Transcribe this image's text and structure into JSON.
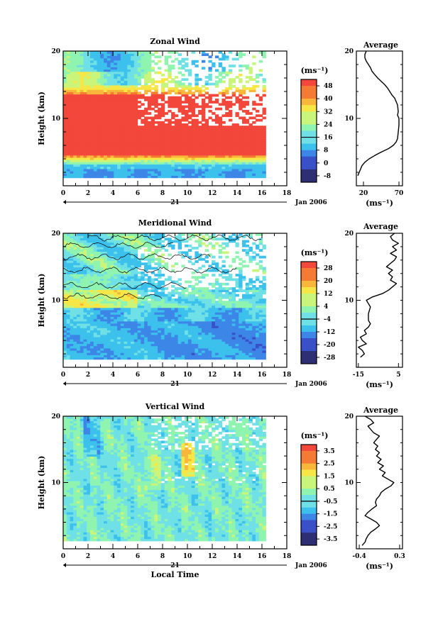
{
  "figure": {
    "shared": {
      "ylabel": "Height (km)",
      "yticks": [
        10,
        20
      ],
      "xticks": [
        0,
        2,
        4,
        6,
        8,
        10,
        12,
        14,
        16,
        18
      ],
      "date_day": "21",
      "date_suffix": "Jan 2006",
      "xlabel": "Local Time",
      "unit_label": "(ms⁻¹)",
      "profile_title": "Average"
    },
    "colors": {
      "palette": [
        "#2c2f73",
        "#3a50c9",
        "#3d86e8",
        "#3cc0ec",
        "#6fe0e6",
        "#8ef4b0",
        "#c9f57a",
        "#f7e746",
        "#f8b73a",
        "#f57a33",
        "#f2473a"
      ],
      "white": "#ffffff"
    }
  },
  "chart_data": [
    {
      "type": "heatmap",
      "title": "Zonal Wind",
      "xlabel": "",
      "ylabel": "Height (km)",
      "x_range": [
        0,
        18
      ],
      "y_range": [
        0,
        20
      ],
      "data_extent_x": [
        0,
        16.3
      ],
      "colorbar": {
        "unit": "(ms⁻¹)",
        "levels": [
          -8,
          0,
          8,
          16,
          24,
          32,
          40,
          48
        ],
        "tick_labels": [
          "48",
          "40",
          "32",
          "24",
          "16",
          "8",
          "0",
          "-8"
        ]
      },
      "profile": {
        "title": "Average",
        "xlabel": "(ms⁻¹)",
        "xlim": [
          10,
          75
        ],
        "xtick_labels": [
          "20",
          "70"
        ],
        "xtick_values": [
          20,
          70
        ],
        "points": [
          [
            12,
            1.5
          ],
          [
            14,
            2
          ],
          [
            16,
            2.5
          ],
          [
            18,
            3
          ],
          [
            22,
            3.5
          ],
          [
            28,
            4
          ],
          [
            36,
            4.5
          ],
          [
            45,
            5
          ],
          [
            55,
            5.5
          ],
          [
            62,
            6
          ],
          [
            66,
            6.5
          ],
          [
            68,
            7
          ],
          [
            69,
            8
          ],
          [
            70,
            9
          ],
          [
            70,
            10
          ],
          [
            68,
            10.5
          ],
          [
            69,
            11
          ],
          [
            68,
            12
          ],
          [
            66,
            12.5
          ],
          [
            64,
            13
          ],
          [
            60,
            13.5
          ],
          [
            57,
            14
          ],
          [
            54,
            14.5
          ],
          [
            50,
            15
          ],
          [
            45,
            15.5
          ],
          [
            40,
            16
          ],
          [
            36,
            16.5
          ],
          [
            32,
            17
          ],
          [
            30,
            17.5
          ],
          [
            27,
            18
          ],
          [
            24,
            18.5
          ],
          [
            22,
            19
          ],
          [
            22,
            19.5
          ],
          [
            24,
            20
          ]
        ]
      }
    },
    {
      "type": "heatmap",
      "title": "Meridional Wind",
      "xlabel": "",
      "ylabel": "Height (km)",
      "x_range": [
        0,
        18
      ],
      "y_range": [
        0,
        20
      ],
      "data_extent_x": [
        0,
        16.3
      ],
      "colorbar": {
        "unit": "(ms⁻¹)",
        "levels": [
          -28,
          -20,
          -12,
          -4,
          4,
          12,
          20,
          28
        ],
        "tick_labels": [
          "28",
          "20",
          "12",
          "4",
          "-4",
          "-12",
          "-20",
          "-28"
        ]
      },
      "profile": {
        "title": "Average",
        "xlabel": "(ms⁻¹)",
        "xlim": [
          -16,
          7
        ],
        "xtick_labels": [
          "-15",
          "5"
        ],
        "xtick_values": [
          -15,
          5
        ],
        "points": [
          [
            -14,
            1.5
          ],
          [
            -12,
            2
          ],
          [
            -13,
            2.5
          ],
          [
            -15,
            3
          ],
          [
            -11,
            3.5
          ],
          [
            -13,
            4
          ],
          [
            -14,
            4.5
          ],
          [
            -11,
            5
          ],
          [
            -12,
            5.5
          ],
          [
            -10,
            6
          ],
          [
            -9,
            6.5
          ],
          [
            -10,
            7
          ],
          [
            -10,
            8
          ],
          [
            -9,
            9
          ],
          [
            -10,
            9.5
          ],
          [
            -11,
            10
          ],
          [
            -8,
            10.5
          ],
          [
            -3,
            11
          ],
          [
            0,
            11.5
          ],
          [
            2,
            12
          ],
          [
            4,
            12.5
          ],
          [
            1,
            13
          ],
          [
            2,
            13.5
          ],
          [
            0,
            14
          ],
          [
            2,
            14.5
          ],
          [
            -1,
            15
          ],
          [
            1,
            15.5
          ],
          [
            3,
            16
          ],
          [
            4,
            16.5
          ],
          [
            1,
            17
          ],
          [
            4,
            17.5
          ],
          [
            2,
            18
          ],
          [
            5,
            18.5
          ],
          [
            2,
            19
          ],
          [
            1,
            19.5
          ],
          [
            3,
            20
          ]
        ]
      }
    },
    {
      "type": "heatmap",
      "title": "Vertical Wind",
      "xlabel": "Local Time",
      "ylabel": "Height (km)",
      "x_range": [
        0,
        18
      ],
      "y_range": [
        0,
        20
      ],
      "data_extent_x": [
        0,
        16.3
      ],
      "colorbar": {
        "unit": "(ms⁻¹)",
        "levels": [
          -3.5,
          -2.5,
          -1.5,
          -0.5,
          0.5,
          1.5,
          2.5,
          3.5
        ],
        "tick_labels": [
          "3.5",
          "2.5",
          "1.5",
          "0.5",
          "-0.5",
          "-1.5",
          "-2.5",
          "-3.5"
        ]
      },
      "profile": {
        "title": "Average",
        "xlabel": "(ms⁻¹)",
        "xlim": [
          -0.45,
          0.35
        ],
        "xtick_labels": [
          "-0.4",
          "0.3"
        ],
        "xtick_values": [
          -0.4,
          0.3
        ],
        "points": [
          [
            -0.35,
            0.5
          ],
          [
            -0.3,
            1
          ],
          [
            -0.28,
            1.5
          ],
          [
            -0.25,
            2
          ],
          [
            -0.2,
            2.5
          ],
          [
            -0.12,
            3
          ],
          [
            -0.05,
            3.5
          ],
          [
            -0.1,
            4
          ],
          [
            -0.2,
            4.5
          ],
          [
            -0.3,
            5
          ],
          [
            -0.25,
            5.5
          ],
          [
            -0.18,
            6
          ],
          [
            -0.1,
            6.5
          ],
          [
            -0.12,
            7
          ],
          [
            -0.1,
            7.5
          ],
          [
            -0.05,
            8
          ],
          [
            -0.02,
            8.5
          ],
          [
            0.05,
            9
          ],
          [
            0.15,
            9.5
          ],
          [
            0.2,
            10
          ],
          [
            0.1,
            10.5
          ],
          [
            0.0,
            11
          ],
          [
            0.05,
            11.5
          ],
          [
            -0.05,
            12
          ],
          [
            0.02,
            12.5
          ],
          [
            -0.08,
            13
          ],
          [
            -0.02,
            13.5
          ],
          [
            -0.1,
            14
          ],
          [
            -0.05,
            14.5
          ],
          [
            -0.12,
            15
          ],
          [
            -0.08,
            15.5
          ],
          [
            -0.15,
            16
          ],
          [
            -0.1,
            16.5
          ],
          [
            -0.05,
            17
          ],
          [
            -0.15,
            17.5
          ],
          [
            -0.2,
            18
          ],
          [
            -0.25,
            18.5
          ],
          [
            -0.15,
            19
          ],
          [
            -0.2,
            19.5
          ],
          [
            -0.3,
            20
          ]
        ]
      }
    }
  ]
}
